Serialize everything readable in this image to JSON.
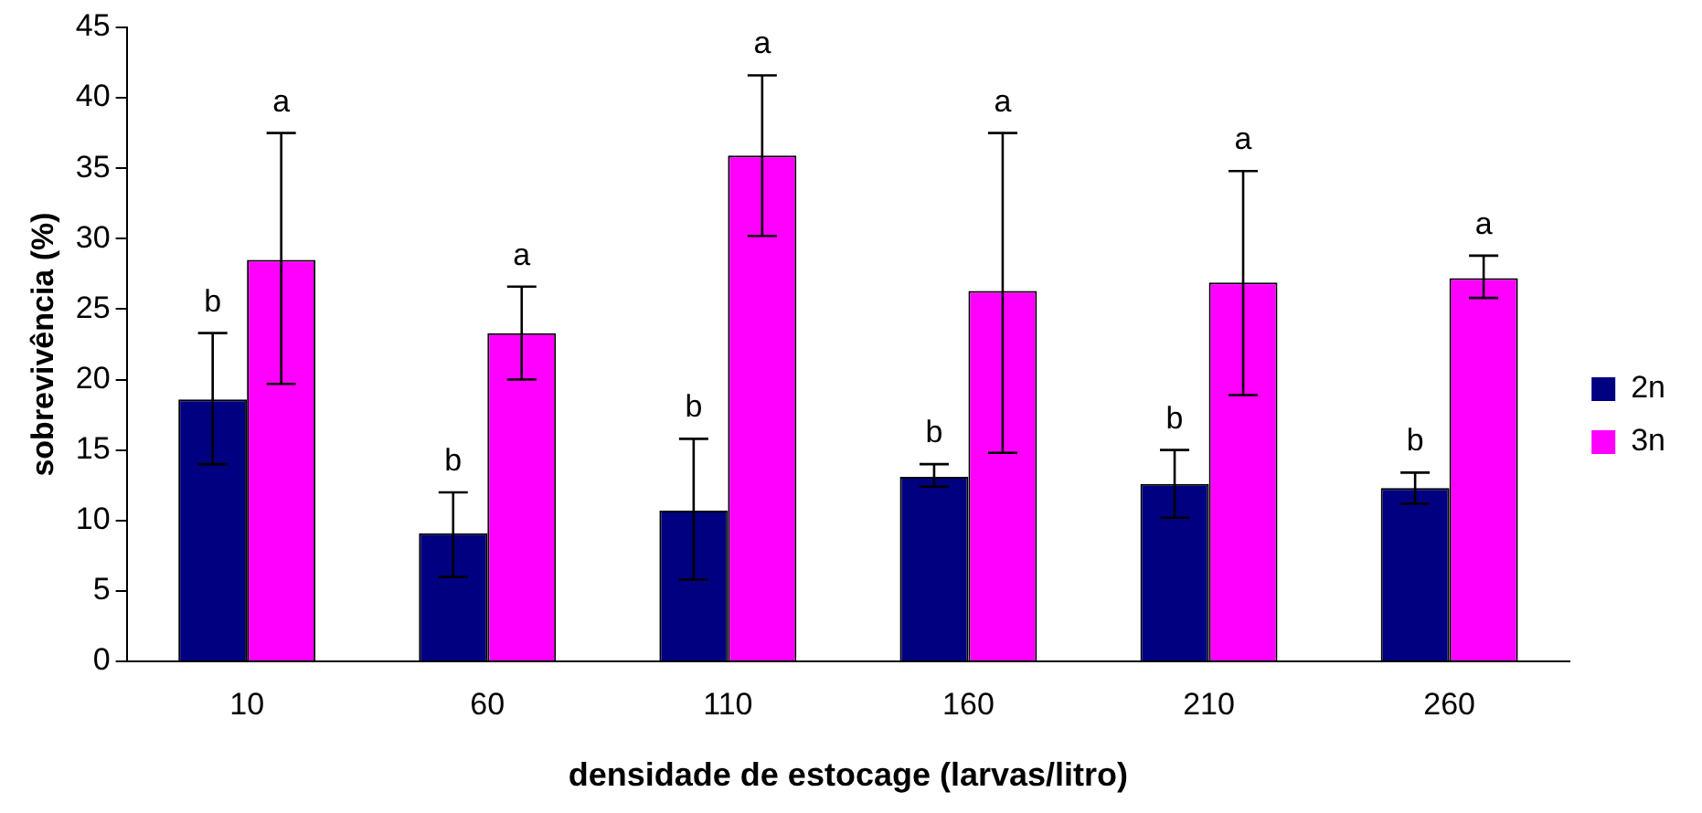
{
  "chart_data": {
    "type": "bar",
    "xlabel": "densidade de estocage (larvas/litro)",
    "ylabel": "sobrevivência (%)",
    "categories": [
      "10",
      "60",
      "110",
      "160",
      "210",
      "260"
    ],
    "series": [
      {
        "name": "2n",
        "color": "#000080",
        "values": [
          18.6,
          9.1,
          10.7,
          13.1,
          12.6,
          12.3
        ],
        "errors": [
          [
            14,
            23.3
          ],
          [
            6,
            12
          ],
          [
            5.8,
            15.8
          ],
          [
            12.4,
            14
          ],
          [
            10.2,
            15
          ],
          [
            11.2,
            13.4
          ]
        ]
      },
      {
        "name": "3n",
        "color": "#ff00ff",
        "values": [
          28.5,
          23.3,
          35.9,
          26.3,
          26.9,
          27.2
        ],
        "errors": [
          [
            19.7,
            37.5
          ],
          [
            20,
            26.6
          ],
          [
            30.2,
            41.6
          ],
          [
            14.8,
            37.5
          ],
          [
            18.9,
            34.8
          ],
          [
            25.8,
            28.8
          ]
        ]
      }
    ],
    "annotations": [
      "b",
      "a",
      "b",
      "a",
      "b",
      "a",
      "b",
      "a",
      "b",
      "a",
      "b",
      "a"
    ],
    "ylim": [
      0,
      45
    ],
    "yticks": [
      0,
      5,
      10,
      15,
      20,
      25,
      30,
      35,
      40,
      45
    ],
    "grid": false,
    "legend": "right"
  }
}
